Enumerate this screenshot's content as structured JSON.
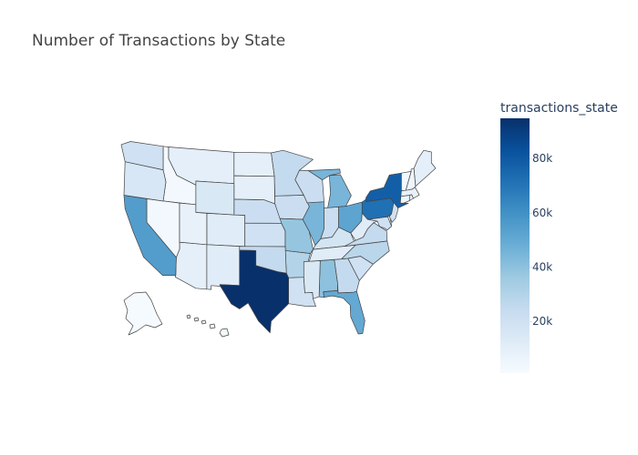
{
  "chart_data": {
    "type": "choropleth",
    "title": "Number of Transactions by State",
    "colorbar_title": "transactions_state",
    "values": [
      40000,
      2000,
      10000,
      30000,
      55000,
      12000,
      5000,
      8000,
      50000,
      25000,
      3000,
      3000,
      45000,
      22000,
      22000,
      20000,
      18000,
      20000,
      10000,
      20000,
      8000,
      45000,
      25000,
      15000,
      38000,
      10000,
      22000,
      3000,
      5000,
      20000,
      12000,
      78000,
      28000,
      10000,
      52000,
      25000,
      16000,
      72000,
      8000,
      20000,
      10000,
      12000,
      95000,
      8000,
      3000,
      25000,
      20000,
      12000,
      22000,
      15000
    ],
    "zlim": [
      1000,
      95000
    ],
    "zticks": [
      {
        "value": 20000,
        "label": "20k"
      },
      {
        "value": 40000,
        "label": "40k"
      },
      {
        "value": 60000,
        "label": "60k"
      },
      {
        "value": 80000,
        "label": "80k"
      }
    ],
    "colorscale": [
      [
        0,
        "rgb(247,251,255)"
      ],
      [
        0.125,
        "rgb(222,235,247)"
      ],
      [
        0.25,
        "rgb(198,219,239)"
      ],
      [
        0.375,
        "rgb(158,202,225)"
      ],
      [
        0.5,
        "rgb(107,174,214)"
      ],
      [
        0.625,
        "rgb(66,146,198)"
      ],
      [
        0.75,
        "rgb(33,113,181)"
      ],
      [
        0.875,
        "rgb(8,81,156)"
      ],
      [
        1,
        "rgb(8,48,107)"
      ]
    ],
    "border_color": "#444444"
  }
}
